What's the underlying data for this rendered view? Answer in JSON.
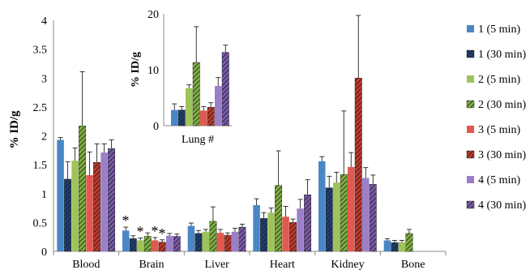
{
  "chart_data": {
    "type": "bar",
    "ylabel": "% ID/g",
    "ylim": [
      0,
      4
    ],
    "yticks": [
      "0",
      "0.5",
      "1",
      "1.5",
      "2",
      "2.5",
      "3",
      "3.5",
      "4"
    ],
    "categories": [
      "Blood",
      "Brain",
      "Liver",
      "Heart",
      "Kidney",
      "Bone"
    ],
    "series": [
      {
        "name": "1 (5 min)",
        "color": "#4a86c6",
        "hatched": false,
        "values": [
          1.93,
          0.36,
          0.44,
          0.8,
          1.56,
          0.19
        ],
        "errors": [
          0.04,
          0.06,
          0.05,
          0.11,
          0.08,
          0.03
        ]
      },
      {
        "name": "1 (30 min)",
        "color": "#1f3f6e",
        "hatched": true,
        "values": [
          1.25,
          0.22,
          0.31,
          0.57,
          1.1,
          0.15
        ],
        "errors": [
          0.3,
          0.05,
          0.05,
          0.1,
          0.2,
          0.04
        ]
      },
      {
        "name": "2 (5 min)",
        "color": "#9dc35a",
        "hatched": false,
        "values": [
          1.57,
          0.19,
          0.34,
          0.67,
          1.19,
          0.16
        ],
        "errors": [
          0.22,
          0.04,
          0.04,
          0.08,
          0.18,
          0.03
        ]
      },
      {
        "name": "2 (30 min)",
        "color": "#7fb03f",
        "hatched": true,
        "values": [
          2.17,
          0.26,
          0.52,
          1.14,
          1.33,
          0.31
        ],
        "errors": [
          0.94,
          0.06,
          0.25,
          0.6,
          1.1,
          0.07
        ]
      },
      {
        "name": "3 (5 min)",
        "color": "#e05a4f",
        "hatched": false,
        "values": [
          1.32,
          0.19,
          0.32,
          0.6,
          1.46,
          null
        ],
        "errors": [
          0.4,
          0.05,
          0.06,
          0.18,
          0.25,
          null
        ]
      },
      {
        "name": "3 (30 min)",
        "color": "#c0392b",
        "hatched": true,
        "values": [
          1.54,
          0.16,
          0.28,
          0.5,
          3.0,
          null
        ],
        "errors": [
          0.32,
          0.04,
          0.04,
          0.06,
          4.0,
          null
        ]
      },
      {
        "name": "4 (5 min)",
        "color": "#9b7fc8",
        "hatched": false,
        "values": [
          1.71,
          0.27,
          0.34,
          0.74,
          1.27,
          null
        ],
        "errors": [
          0.15,
          0.04,
          0.06,
          0.16,
          0.18,
          null
        ]
      },
      {
        "name": "4 (30 min)",
        "color": "#7a5aa8",
        "hatched": true,
        "values": [
          1.78,
          0.26,
          0.42,
          0.98,
          1.16,
          null
        ],
        "errors": [
          0.15,
          0.04,
          0.05,
          0.26,
          0.16,
          null
        ]
      }
    ],
    "annotations": {
      "brain_markers": [
        "*",
        "*",
        "*",
        "*"
      ]
    },
    "legend_position": "right",
    "inset": {
      "type": "bar",
      "category": "Lung #",
      "ylabel": "% ID/g",
      "ylim": [
        0,
        20
      ],
      "yticks": [
        "0",
        "10",
        "20"
      ],
      "values": [
        2.8,
        2.8,
        6.7,
        11.3,
        2.7,
        3.3,
        7.1,
        13.1
      ],
      "errors": [
        1.1,
        0.6,
        0.6,
        6.4,
        0.7,
        0.8,
        1.5,
        1.3
      ]
    }
  }
}
